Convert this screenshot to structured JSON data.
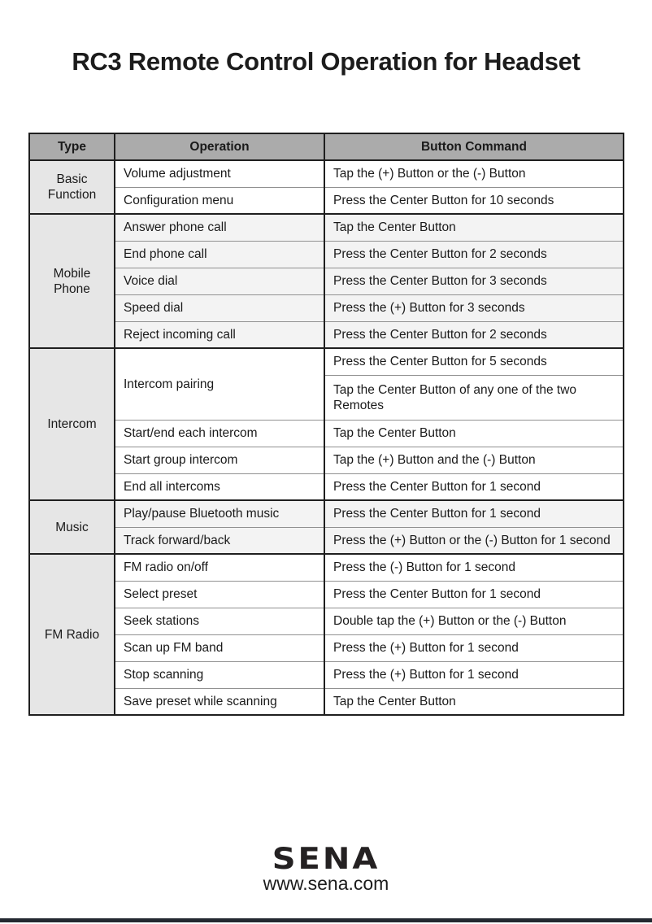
{
  "title": "RC3 Remote Control Operation for Headset",
  "colors": {
    "header_bg": "#ababab",
    "type_bg": "#e6e6e6",
    "row_tint": "#f3f3f3",
    "border_dark": "#1f1f1f",
    "border_light": "#919191",
    "footer_bar": "#232830",
    "text": "#1a1a1a"
  },
  "table": {
    "headers": {
      "type": "Type",
      "operation": "Operation",
      "command": "Button Command"
    },
    "sections": [
      {
        "type": "Basic Function",
        "rows": [
          {
            "operation": "Volume adjustment",
            "command": "Tap the (+) Button or the (-) Button"
          },
          {
            "operation": "Configuration menu",
            "command": "Press the Center Button for 10 seconds"
          }
        ]
      },
      {
        "type": "Mobile Phone",
        "rows": [
          {
            "operation": "Answer phone call",
            "command": "Tap the Center Button"
          },
          {
            "operation": "End phone call",
            "command": "Press the Center Button for 2 seconds"
          },
          {
            "operation": "Voice dial",
            "command": "Press the Center Button for 3 seconds"
          },
          {
            "operation": "Speed dial",
            "command": "Press the (+) Button for 3 seconds"
          },
          {
            "operation": "Reject incoming call",
            "command": "Press the Center Button for 2 seconds"
          }
        ]
      },
      {
        "type": "Intercom",
        "rows": [
          {
            "operation": "Intercom pairing",
            "command": "Press the Center Button for 5 seconds"
          },
          {
            "command": "Tap the Center Button of any one of the two Remotes"
          },
          {
            "operation": "Start/end each intercom",
            "command": "Tap the Center Button"
          },
          {
            "operation": "Start group intercom",
            "command": "Tap the (+) Button and the (-) Button"
          },
          {
            "operation": "End all intercoms",
            "command": "Press the Center Button for 1 second"
          }
        ]
      },
      {
        "type": "Music",
        "rows": [
          {
            "operation": "Play/pause Bluetooth music",
            "command": "Press the Center Button for 1 second"
          },
          {
            "operation": "Track forward/back",
            "command": "Press the (+) Button or the (-) Button for 1 second"
          }
        ]
      },
      {
        "type": "FM Radio",
        "rows": [
          {
            "operation": "FM radio on/off",
            "command": "Press the (-) Button for 1 second"
          },
          {
            "operation": "Select preset",
            "command": "Press the Center Button for 1 second"
          },
          {
            "operation": "Seek stations",
            "command": "Double tap the (+) Button or the (-) Button"
          },
          {
            "operation": "Scan up FM band",
            "command": "Press the (+) Button for 1 second"
          },
          {
            "operation": "Stop scanning",
            "command": "Press the (+) Button for 1 second"
          },
          {
            "operation": "Save preset while scanning",
            "command": "Tap the Center Button"
          }
        ]
      }
    ]
  },
  "footer": {
    "logo_text": "SENA",
    "url": "www.sena.com"
  }
}
